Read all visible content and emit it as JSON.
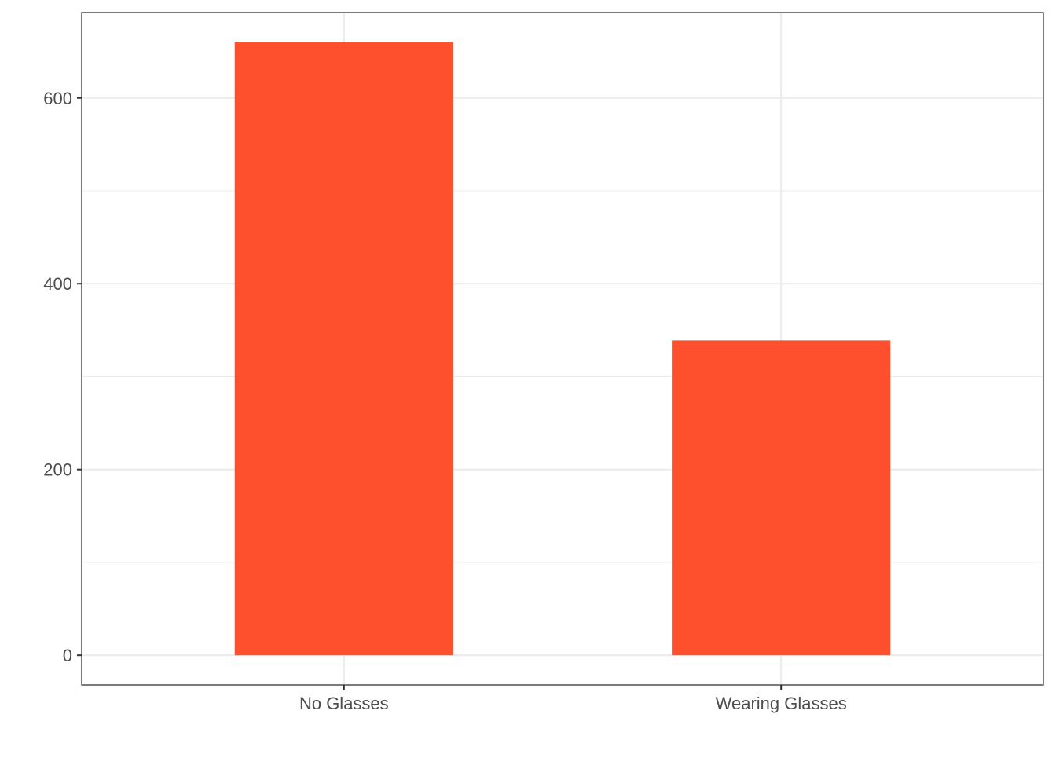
{
  "chart_data": {
    "type": "bar",
    "categories": [
      "No Glasses",
      "Wearing Glasses"
    ],
    "values": [
      660,
      339
    ],
    "title": "",
    "xlabel": "",
    "ylabel": "",
    "ylim": [
      -32,
      692
    ],
    "yticks": [
      0,
      200,
      400,
      600
    ],
    "y_minor_gridlines": [
      100,
      300,
      500
    ],
    "grid": true,
    "legend": "none",
    "bar_color": "#FF502E",
    "gridline_color": "#EBEBEB",
    "axis_color": "#333333",
    "text_color": "#4D4D4D"
  }
}
